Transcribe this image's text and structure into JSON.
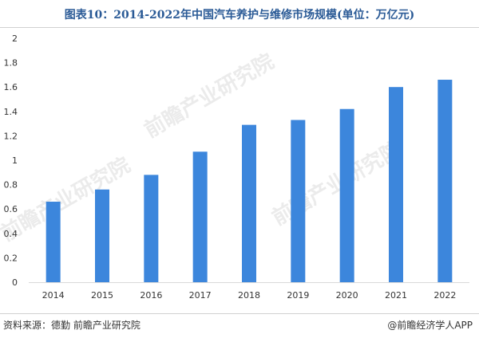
{
  "chart_data": {
    "type": "bar",
    "title": "图表10：2014-2022年中国汽车养护与维修市场规模(单位：万亿元)",
    "categories": [
      "2014",
      "2015",
      "2016",
      "2017",
      "2018",
      "2019",
      "2020",
      "2021",
      "2022"
    ],
    "values": [
      0.66,
      0.76,
      0.88,
      1.07,
      1.29,
      1.33,
      1.42,
      1.6,
      1.66
    ],
    "yticks": [
      "0",
      "0.2",
      "0.4",
      "0.6",
      "0.8",
      "1",
      "1.2",
      "1.4",
      "1.6",
      "1.8",
      "2"
    ],
    "ylim": [
      0,
      2
    ],
    "grid": false,
    "bar_color": "#3c86dc"
  },
  "footer": {
    "source": "资料来源：德勤 前瞻产业研究院",
    "brand": "@前瞻经济学人APP"
  },
  "watermark": "前瞻产业研究院"
}
